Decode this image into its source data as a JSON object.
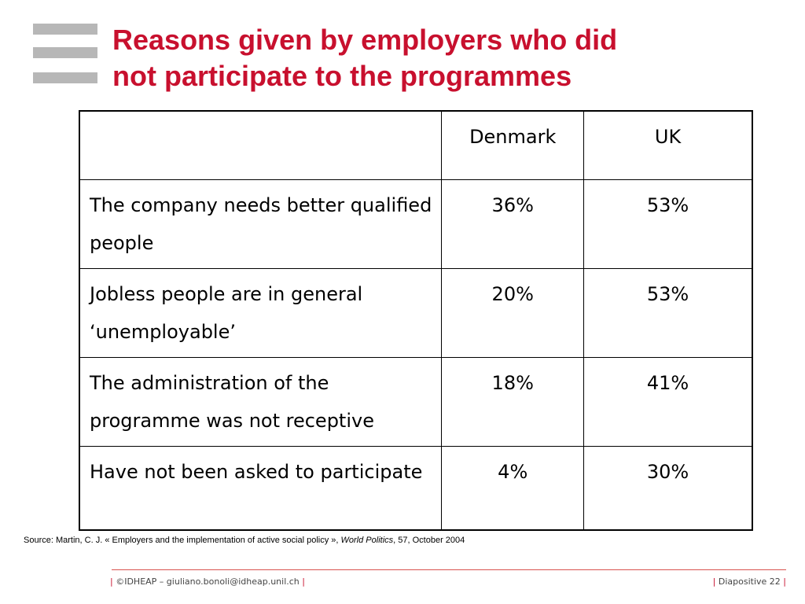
{
  "header": {
    "title_line1": "Reasons given by employers who did",
    "title_line2": "not participate to the programmes"
  },
  "table": {
    "columns": [
      "",
      "Denmark",
      "UK"
    ],
    "rows": [
      {
        "reason": "The company needs better qualified people",
        "denmark": "36%",
        "uk": "53%"
      },
      {
        "reason": "Jobless people are in general ‘unemployable’",
        "denmark": "20%",
        "uk": "53%"
      },
      {
        "reason": "The administration of the programme was not receptive",
        "denmark": "18%",
        "uk": "41%"
      },
      {
        "reason": "Have not been asked to participate",
        "denmark": "4%",
        "uk": "30%"
      }
    ]
  },
  "source": {
    "prefix": "Source: Martin, C. J. « Employers and the implementation of active social policy », ",
    "journal": "World Politics",
    "suffix": ", 57, October 2004"
  },
  "footer": {
    "left_text": "©IDHEAP – giuliano.bonoli@idheap.unil.ch",
    "right_text": "Diapositive 22",
    "pipe": "|"
  },
  "colors": {
    "title": "#c8102e",
    "logo_bars": "#b7b7b7",
    "footer_rule": "#d9534f"
  }
}
